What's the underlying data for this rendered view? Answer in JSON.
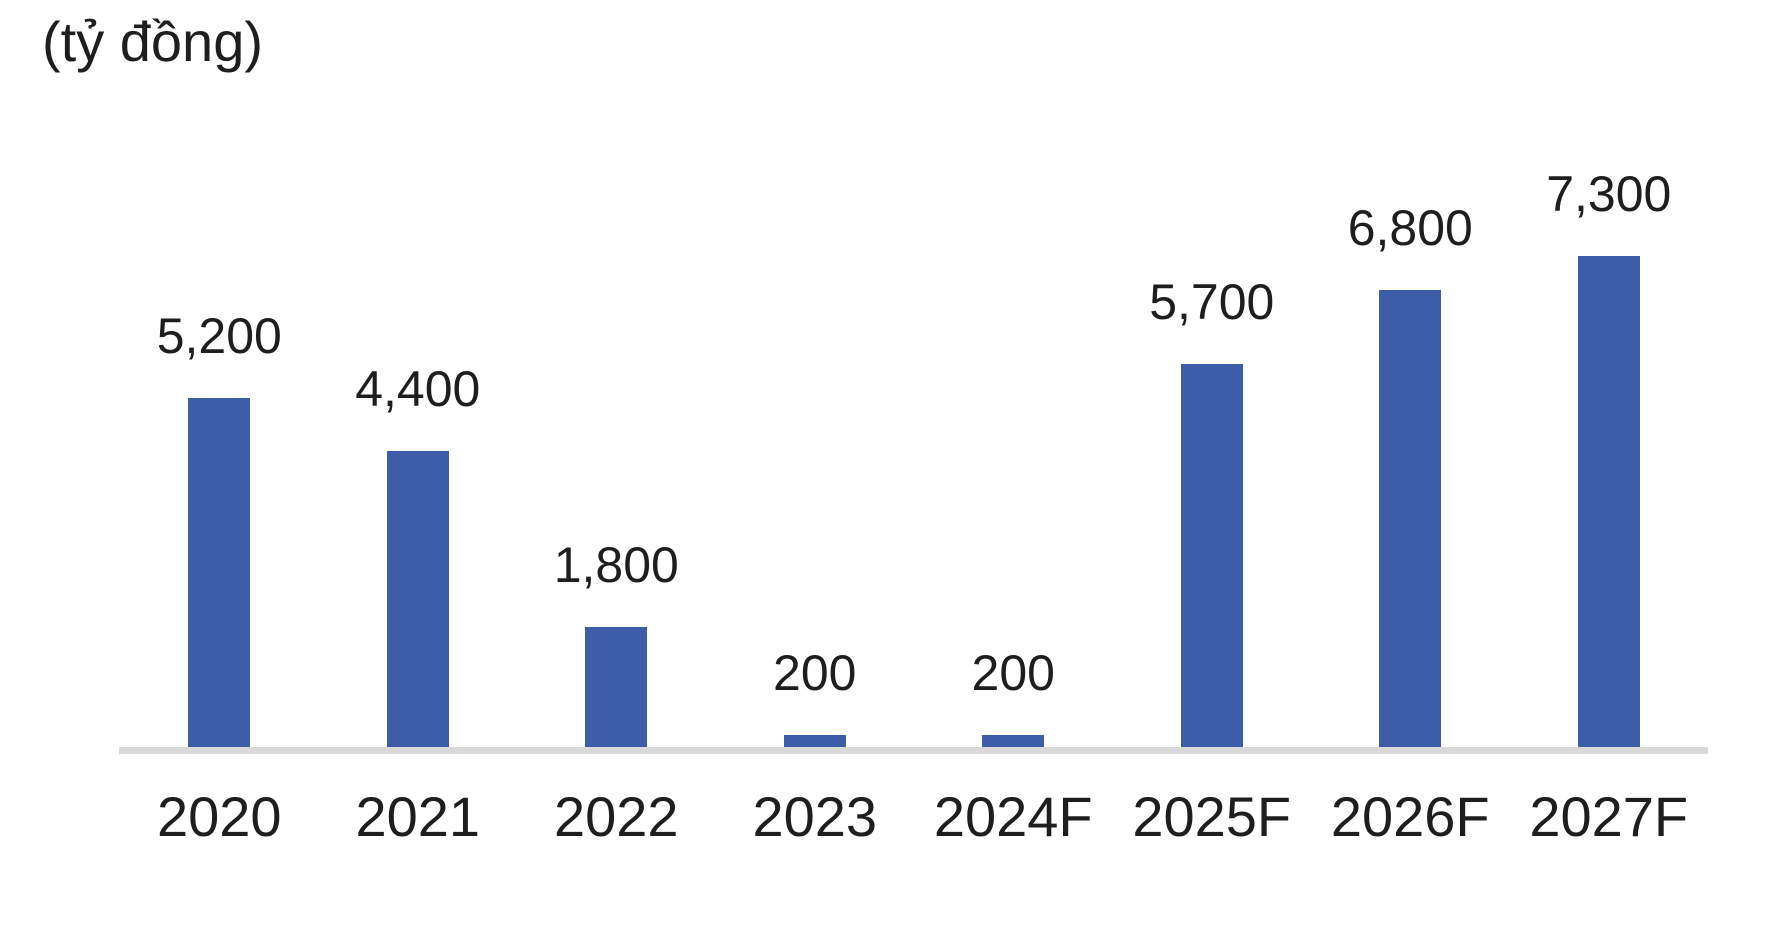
{
  "title": "(tỷ đồng)",
  "colors": {
    "bar": "#3E5DA8",
    "text": "#1E1E1E",
    "axis_line": "#D9D9D9",
    "background": "#FFFFFF"
  },
  "chart_data": {
    "type": "bar",
    "title": "(tỷ đồng)",
    "unit": "tỷ đồng",
    "categories": [
      "2020",
      "2021",
      "2022",
      "2023",
      "2024F",
      "2025F",
      "2026F",
      "2027F"
    ],
    "values": [
      5200,
      4400,
      1800,
      200,
      200,
      5700,
      6800,
      7300
    ],
    "value_labels": [
      "5,200",
      "4,400",
      "1,800",
      "200",
      "200",
      "5,700",
      "6,800",
      "7,300"
    ],
    "xlabel": "",
    "ylabel": "",
    "ylim": [
      0,
      9600
    ],
    "grid": false,
    "legend": "none",
    "data_labels": "above-bars",
    "bar_color": "#3E5DA8"
  }
}
